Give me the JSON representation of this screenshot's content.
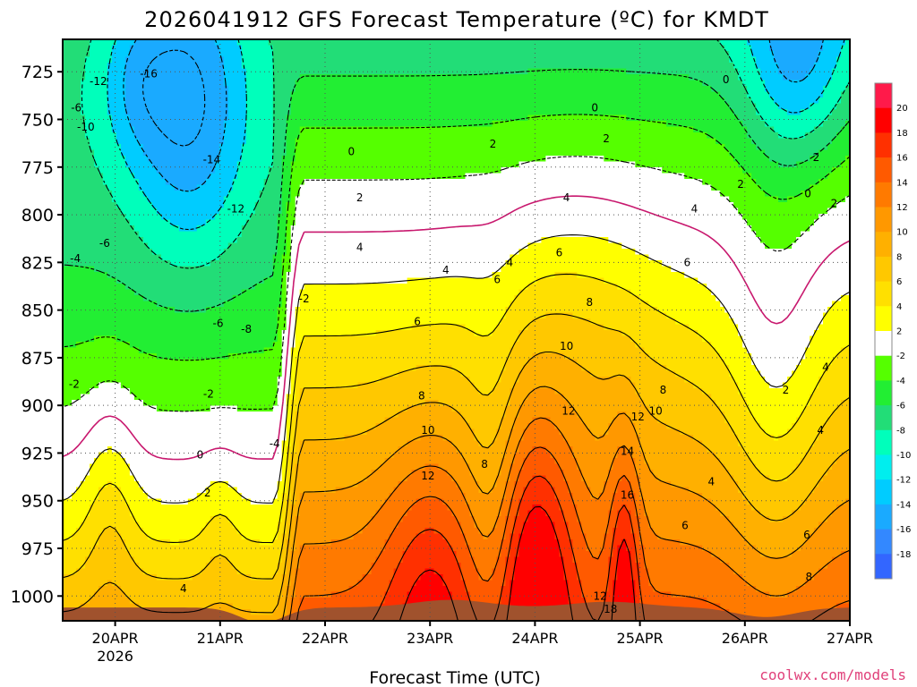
{
  "chart_data": {
    "type": "heatmap",
    "title": "2026041912 GFS Forecast Temperature (ºC) for KMDT",
    "xlabel": "Forecast Time (UTC)",
    "ylabel": "",
    "watermark": "coolwx.com/models",
    "x_ticks": [
      "20APR",
      "21APR",
      "22APR",
      "23APR",
      "24APR",
      "25APR",
      "26APR",
      "27APR"
    ],
    "x_year_label": "2026",
    "x_range_days": [
      19.5,
      27.0
    ],
    "y_ticks": [
      725,
      750,
      775,
      800,
      825,
      850,
      875,
      900,
      925,
      950,
      975,
      1000
    ],
    "y_range_hpa": [
      708,
      1013
    ],
    "y_inverted": true,
    "grid": true,
    "colorbar": {
      "placement": "right",
      "labels": [
        "20",
        "18",
        "16",
        "14",
        "12",
        "10",
        "8",
        "6",
        "4",
        "2",
        "-2",
        "-4",
        "-6",
        "-8",
        "-10",
        "-12",
        "-14",
        "-16",
        "-18"
      ],
      "colors": [
        "#ff1a4a",
        "#ff0000",
        "#ff3000",
        "#ff5a00",
        "#ff7a00",
        "#ff9800",
        "#ffb000",
        "#ffc800",
        "#ffe000",
        "#ffff00",
        "#ffffff",
        "#55ff00",
        "#22ee33",
        "#22dd77",
        "#00ffbb",
        "#00eeee",
        "#00ccff",
        "#1aaaff",
        "#3388ff",
        "#3366ff"
      ]
    },
    "bands": [
      {
        "range": "below -12",
        "color": "#1aaaff"
      },
      {
        "range": "-12 to -10",
        "color": "#00ccff"
      },
      {
        "range": "-10 to -8",
        "color": "#00ffbb"
      },
      {
        "range": "-8 to -6",
        "color": "#22dd77"
      },
      {
        "range": "-6 to -4",
        "color": "#22ee33"
      },
      {
        "range": "-4 to -2",
        "color": "#55ff00"
      },
      {
        "range": "-2 to 2",
        "color": "#ffffff"
      },
      {
        "range": "2 to 4",
        "color": "#ffff00"
      },
      {
        "range": "4 to 6",
        "color": "#ffe000"
      },
      {
        "range": "6 to 8",
        "color": "#ffc800"
      },
      {
        "range": "8 to 10",
        "color": "#ffb000"
      },
      {
        "range": "10 to 12",
        "color": "#ff9800"
      },
      {
        "range": "12 to 14",
        "color": "#ff7a00"
      },
      {
        "range": "14 to 16",
        "color": "#ff5a00"
      },
      {
        "range": "16 to 18",
        "color": "#ff3000"
      },
      {
        "range": "above 18",
        "color": "#ff0000"
      }
    ],
    "terrain_color": "#a0522d",
    "zero_line_color": "#c8186e",
    "contour_labels": [
      {
        "text": "-16",
        "x": 20.32,
        "p": 726
      },
      {
        "text": "-12",
        "x": 19.84,
        "p": 730
      },
      {
        "text": "-6",
        "x": 19.63,
        "p": 744
      },
      {
        "text": "-10",
        "x": 19.72,
        "p": 754
      },
      {
        "text": "-14",
        "x": 20.92,
        "p": 771
      },
      {
        "text": "-12",
        "x": 21.15,
        "p": 797
      },
      {
        "text": "-6",
        "x": 19.9,
        "p": 815
      },
      {
        "text": "-4",
        "x": 19.62,
        "p": 823
      },
      {
        "text": "-6",
        "x": 20.98,
        "p": 857
      },
      {
        "text": "-8",
        "x": 21.25,
        "p": 860
      },
      {
        "text": "-2",
        "x": 21.8,
        "p": 844
      },
      {
        "text": "-2",
        "x": 19.61,
        "p": 889
      },
      {
        "text": "-2",
        "x": 20.89,
        "p": 894
      },
      {
        "text": "-4",
        "x": 21.52,
        "p": 920
      },
      {
        "text": "0",
        "x": 20.81,
        "p": 926
      },
      {
        "text": "2",
        "x": 20.88,
        "p": 946
      },
      {
        "text": "4",
        "x": 20.65,
        "p": 996
      },
      {
        "text": "0",
        "x": 22.25,
        "p": 767
      },
      {
        "text": "2",
        "x": 22.33,
        "p": 791
      },
      {
        "text": "4",
        "x": 22.33,
        "p": 817
      },
      {
        "text": "4",
        "x": 23.15,
        "p": 829
      },
      {
        "text": "6",
        "x": 22.88,
        "p": 856
      },
      {
        "text": "8",
        "x": 22.92,
        "p": 895
      },
      {
        "text": "10",
        "x": 22.98,
        "p": 913
      },
      {
        "text": "12",
        "x": 22.98,
        "p": 937
      },
      {
        "text": "8",
        "x": 23.52,
        "p": 931
      },
      {
        "text": "2",
        "x": 23.6,
        "p": 763
      },
      {
        "text": "4",
        "x": 23.76,
        "p": 825
      },
      {
        "text": "6",
        "x": 23.64,
        "p": 834
      },
      {
        "text": "4",
        "x": 24.3,
        "p": 791
      },
      {
        "text": "6",
        "x": 24.23,
        "p": 820
      },
      {
        "text": "8",
        "x": 24.52,
        "p": 846
      },
      {
        "text": "10",
        "x": 24.3,
        "p": 869
      },
      {
        "text": "12",
        "x": 24.32,
        "p": 903
      },
      {
        "text": "0",
        "x": 24.57,
        "p": 744
      },
      {
        "text": "2",
        "x": 24.68,
        "p": 760
      },
      {
        "text": "4",
        "x": 25.52,
        "p": 797
      },
      {
        "text": "6",
        "x": 25.45,
        "p": 825
      },
      {
        "text": "8",
        "x": 25.22,
        "p": 892
      },
      {
        "text": "10",
        "x": 25.15,
        "p": 903
      },
      {
        "text": "12",
        "x": 24.98,
        "p": 906
      },
      {
        "text": "14",
        "x": 24.88,
        "p": 924
      },
      {
        "text": "16",
        "x": 24.88,
        "p": 947
      },
      {
        "text": "12",
        "x": 24.62,
        "p": 1000
      },
      {
        "text": "18",
        "x": 24.72,
        "p": 1007
      },
      {
        "text": "6",
        "x": 25.43,
        "p": 963
      },
      {
        "text": "4",
        "x": 25.68,
        "p": 940
      },
      {
        "text": "0",
        "x": 25.82,
        "p": 729
      },
      {
        "text": "2",
        "x": 25.96,
        "p": 784
      },
      {
        "text": "2",
        "x": 26.68,
        "p": 770
      },
      {
        "text": "0",
        "x": 26.6,
        "p": 789
      },
      {
        "text": "2",
        "x": 26.85,
        "p": 794
      },
      {
        "text": "2",
        "x": 26.39,
        "p": 892
      },
      {
        "text": "4",
        "x": 26.77,
        "p": 880
      },
      {
        "text": "4",
        "x": 26.72,
        "p": 913
      },
      {
        "text": "6",
        "x": 26.59,
        "p": 968
      },
      {
        "text": "8",
        "x": 26.61,
        "p": 990
      }
    ]
  }
}
